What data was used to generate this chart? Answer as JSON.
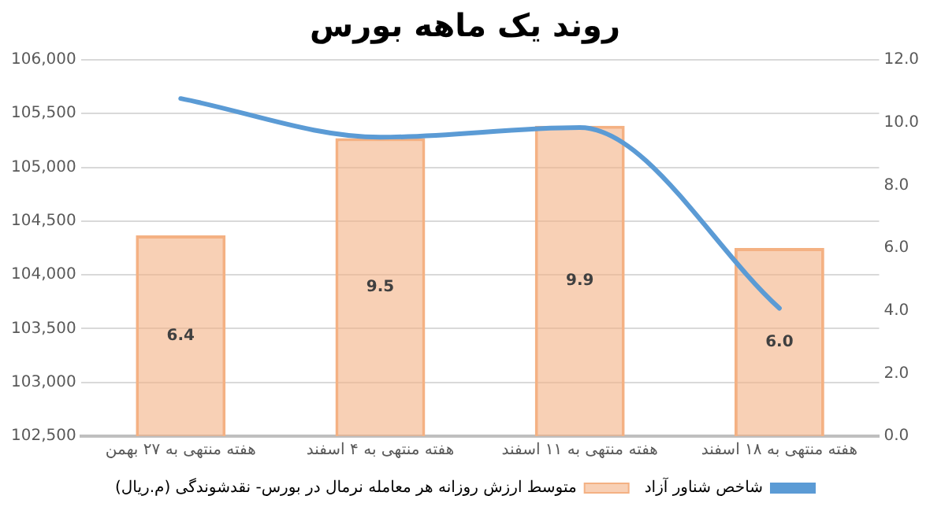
{
  "chart_data": {
    "type": "bar",
    "title": "روند یک ماهه بورس",
    "categories": [
      "هفته منتهی به ۲۷ بهمن",
      "هفته منتهی به ۴ اسفند",
      "هفته منتهی به ۱۱ اسفند",
      "هفته منتهی به ۱۸ اسفند"
    ],
    "series": [
      {
        "name": "شاخص شناور آزاد",
        "type": "line",
        "color": "#5b9bd5",
        "values": [
          105640,
          105280,
          105370,
          103690
        ]
      },
      {
        "name": "متوسط ارزش روزانه هر معامله نرمال در بورس- نقدشوندگی (م.ریال)",
        "axis": "y2",
        "color": "#f4b183",
        "values": [
          6.4,
          9.5,
          9.9,
          6.0
        ],
        "value_labels": [
          "6.4",
          "9.5",
          "9.9",
          "6.0"
        ]
      }
    ],
    "ylim": [
      102500,
      106000
    ],
    "yticks": [
      {
        "value": 102500,
        "label": "102,500"
      },
      {
        "value": 103000,
        "label": "103,000"
      },
      {
        "value": 103500,
        "label": "103,500"
      },
      {
        "value": 104000,
        "label": "104,000"
      },
      {
        "value": 104500,
        "label": "104,500"
      },
      {
        "value": 105000,
        "label": "105,000"
      },
      {
        "value": 105500,
        "label": "105,500"
      },
      {
        "value": 106000,
        "label": "106,000"
      }
    ],
    "y2lim": [
      0,
      12
    ],
    "y2ticks": [
      {
        "value": 0,
        "label": "0.0"
      },
      {
        "value": 2,
        "label": "2.0"
      },
      {
        "value": 4,
        "label": "4.0"
      },
      {
        "value": 6,
        "label": "6.0"
      },
      {
        "value": 8,
        "label": "8.0"
      },
      {
        "value": 10,
        "label": "10.0"
      },
      {
        "value": 12,
        "label": "12.0"
      }
    ],
    "grid": "y",
    "legend": "bottom",
    "marker": "none",
    "line_style": "solid"
  }
}
